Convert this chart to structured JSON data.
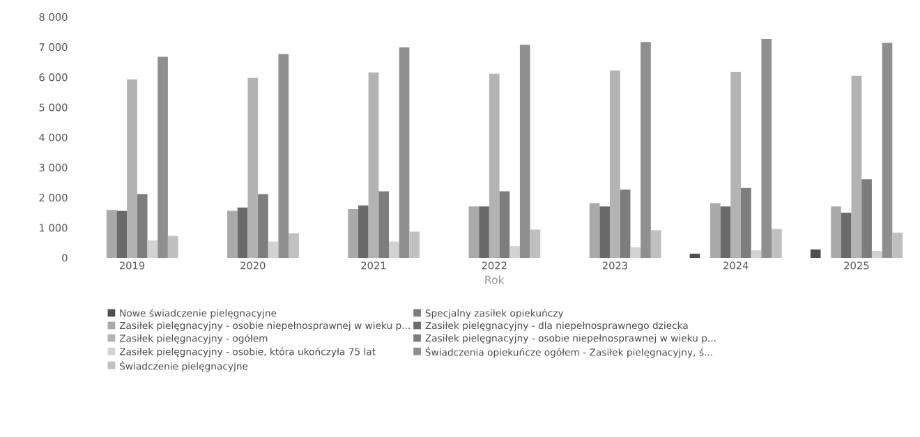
{
  "chart_data": {
    "type": "bar",
    "xlabel": "Rok",
    "categories": [
      "2019",
      "2020",
      "2021",
      "2022",
      "2023",
      "2024",
      "2025"
    ],
    "ylim": [
      0,
      8000
    ],
    "yticks": [
      0,
      {
        "value": 1000,
        "label": "1 000"
      },
      {
        "value": 2000,
        "label": "2 000"
      },
      {
        "value": 3000,
        "label": "3 000"
      },
      {
        "value": 4000,
        "label": "4 000"
      },
      {
        "value": 5000,
        "label": "5 000"
      },
      {
        "value": 6000,
        "label": "6 000"
      },
      {
        "value": 7000,
        "label": "7 000"
      },
      {
        "value": 8000,
        "label": "8 000"
      }
    ],
    "legend": "bottom",
    "grid": false,
    "series": [
      {
        "name": "Nowe świadczenie pielęgnacyjne",
        "color": "#4f4f4f",
        "values": [
          0,
          0,
          0,
          0,
          0,
          140,
          280
        ]
      },
      {
        "name": "Specjalny zasiłek opiekuńczy",
        "color": "#7c7c7c",
        "values": [
          0,
          0,
          0,
          0,
          0,
          0,
          0
        ]
      },
      {
        "name": "Zasiłek pielęgnacyjny -  osobie niepełnosprawnej w wieku p...",
        "color": "#a9a9a9",
        "values": [
          1590,
          1560,
          1620,
          1710,
          1820,
          1820,
          1710
        ]
      },
      {
        "name": "Zasiłek pielęgnacyjny - dla niepełnosprawnego dziecka",
        "color": "#6a6a6a",
        "values": [
          1560,
          1670,
          1740,
          1710,
          1710,
          1710,
          1500
        ]
      },
      {
        "name": "Zasiłek pielęgnacyjny - ogółem",
        "color": "#b3b3b3",
        "values": [
          5930,
          5980,
          6160,
          6120,
          6220,
          6180,
          6050
        ]
      },
      {
        "name": "Zasiłek pielęgnacyjny - osobie niepełnosprawnej w wieku p...",
        "color": "#7d7d7d",
        "values": [
          2120,
          2120,
          2210,
          2210,
          2270,
          2320,
          2610
        ]
      },
      {
        "name": "Zasiłek pielęgnacyjny - osobie, która ukończyła 75 lat",
        "color": "#d2d2d2",
        "values": [
          580,
          540,
          540,
          390,
          350,
          250,
          230
        ]
      },
      {
        "name": "Świadczenia opiekuńcze ogółem - Zasiłek pielęgnacyjny, ś...",
        "color": "#8f8f8f",
        "values": [
          6680,
          6770,
          6990,
          7080,
          7170,
          7270,
          7140
        ]
      },
      {
        "name": "Świadczenie pielęgnacyjne",
        "color": "#c0c0c0",
        "values": [
          730,
          820,
          870,
          940,
          920,
          960,
          840
        ]
      }
    ]
  }
}
